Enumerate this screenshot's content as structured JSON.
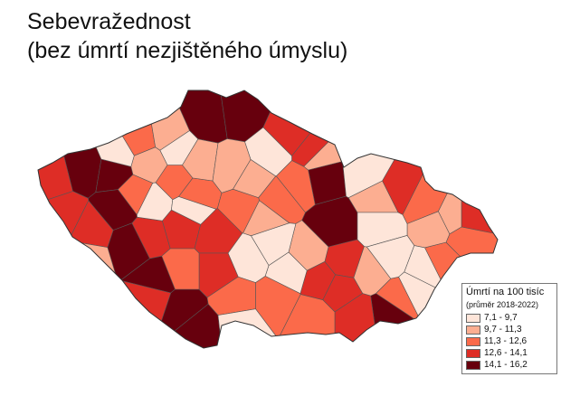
{
  "title_line1": "Sebevražednost",
  "title_line2": "(bez úmrtí nezjištěného úmyslu)",
  "legend": {
    "title": "Úmrtí na 100 tisíc",
    "subtitle": "(průměr 2018-2022)",
    "classes": [
      {
        "label": "7,1 - 9,7",
        "color": "#fee5d9"
      },
      {
        "label": "9,7 - 11,3",
        "color": "#fcae91"
      },
      {
        "label": "11,3 - 12,6",
        "color": "#fb6a4a"
      },
      {
        "label": "12,6 - 14,1",
        "color": "#de2d26"
      },
      {
        "label": "14,1 - 16,2",
        "color": "#67000d"
      }
    ]
  }
}
